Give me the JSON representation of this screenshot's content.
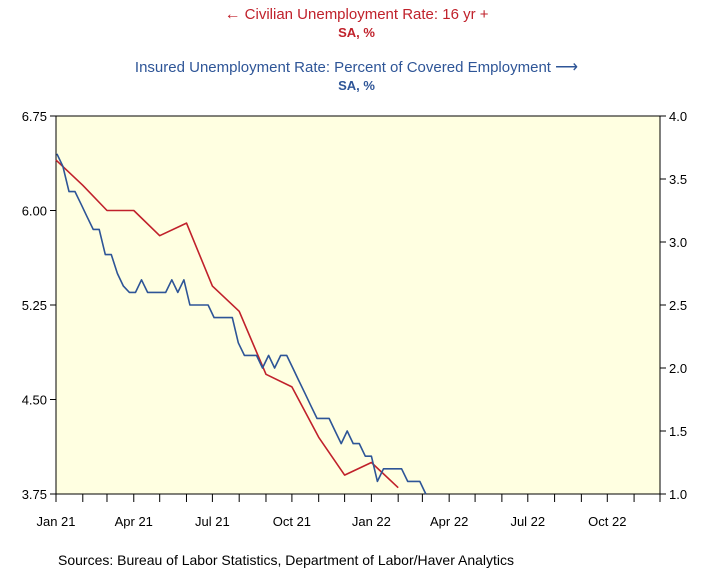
{
  "chart_data": {
    "type": "line",
    "legend": [
      {
        "label": "Civilian Unemployment Rate: 16 yr +",
        "unit": "SA, %",
        "axis": "left",
        "arrow": "←",
        "color": "#c0212b"
      },
      {
        "label": "Insured Unemployment Rate: Percent of Covered Employment",
        "unit": "SA, %",
        "axis": "right",
        "arrow": "⟶",
        "color": "#2e5597"
      }
    ],
    "x_ticks": [
      "Jan 21",
      "Apr 21",
      "Jul 21",
      "Oct 21",
      "Jan 22",
      "Apr 22",
      "Jul 22",
      "Oct 22"
    ],
    "xlim": [
      "2021-01",
      "2022-12"
    ],
    "left_axis": {
      "ylim": [
        3.75,
        6.75
      ],
      "ticks": [
        "6.75",
        "6.00",
        "5.25",
        "4.50",
        "3.75"
      ]
    },
    "right_axis": {
      "ylim": [
        1.0,
        4.0
      ],
      "ticks": [
        "4.0",
        "3.5",
        "3.0",
        "2.5",
        "2.0",
        "1.5",
        "1.0"
      ]
    },
    "background": "#ffffe1",
    "series": [
      {
        "name": "Civilian Unemployment Rate: 16 yr +",
        "axis": "left",
        "color": "#c0212b",
        "x": [
          "2021-01",
          "2021-02",
          "2021-03",
          "2021-04",
          "2021-05",
          "2021-06",
          "2021-07",
          "2021-08",
          "2021-09",
          "2021-10",
          "2021-11",
          "2021-12",
          "2022-01",
          "2022-02"
        ],
        "values": [
          6.4,
          6.2,
          6.0,
          6.0,
          5.8,
          5.9,
          5.4,
          5.2,
          4.7,
          4.6,
          4.2,
          3.9,
          4.0,
          3.8
        ]
      },
      {
        "name": "Insured Unemployment Rate: Percent of Covered Employment",
        "axis": "right",
        "color": "#2e5597",
        "x": [
          "2021-01-02",
          "2021-01-09",
          "2021-01-16",
          "2021-01-23",
          "2021-01-30",
          "2021-02-06",
          "2021-02-13",
          "2021-02-20",
          "2021-02-27",
          "2021-03-06",
          "2021-03-13",
          "2021-03-20",
          "2021-03-27",
          "2021-04-03",
          "2021-04-10",
          "2021-04-17",
          "2021-04-24",
          "2021-05-01",
          "2021-05-08",
          "2021-05-15",
          "2021-05-22",
          "2021-05-29",
          "2021-06-05",
          "2021-06-12",
          "2021-06-19",
          "2021-06-26",
          "2021-07-03",
          "2021-07-10",
          "2021-07-17",
          "2021-07-24",
          "2021-07-31",
          "2021-08-07",
          "2021-08-14",
          "2021-08-21",
          "2021-08-28",
          "2021-09-04",
          "2021-09-11",
          "2021-09-18",
          "2021-09-25",
          "2021-10-02",
          "2021-10-09",
          "2021-10-16",
          "2021-10-23",
          "2021-10-30",
          "2021-11-06",
          "2021-11-13",
          "2021-11-20",
          "2021-11-27",
          "2021-12-04",
          "2021-12-11",
          "2021-12-18",
          "2021-12-25",
          "2022-01-01",
          "2022-01-08",
          "2022-01-15",
          "2022-01-22",
          "2022-01-29",
          "2022-02-05",
          "2022-02-12",
          "2022-02-19",
          "2022-02-26",
          "2022-03-05"
        ],
        "values": [
          3.7,
          3.6,
          3.4,
          3.4,
          3.3,
          3.2,
          3.1,
          3.1,
          2.9,
          2.9,
          2.75,
          2.65,
          2.6,
          2.6,
          2.7,
          2.6,
          2.6,
          2.6,
          2.6,
          2.7,
          2.6,
          2.7,
          2.5,
          2.5,
          2.5,
          2.5,
          2.4,
          2.4,
          2.4,
          2.4,
          2.2,
          2.1,
          2.1,
          2.1,
          2.0,
          2.1,
          2.0,
          2.1,
          2.1,
          2.0,
          1.9,
          1.8,
          1.7,
          1.6,
          1.6,
          1.6,
          1.5,
          1.4,
          1.5,
          1.4,
          1.4,
          1.3,
          1.3,
          1.1,
          1.2,
          1.2,
          1.2,
          1.2,
          1.1,
          1.1,
          1.1,
          1.0
        ]
      }
    ]
  },
  "source": "Sources:  Bureau of Labor Statistics, Department of Labor/Haver Analytics"
}
